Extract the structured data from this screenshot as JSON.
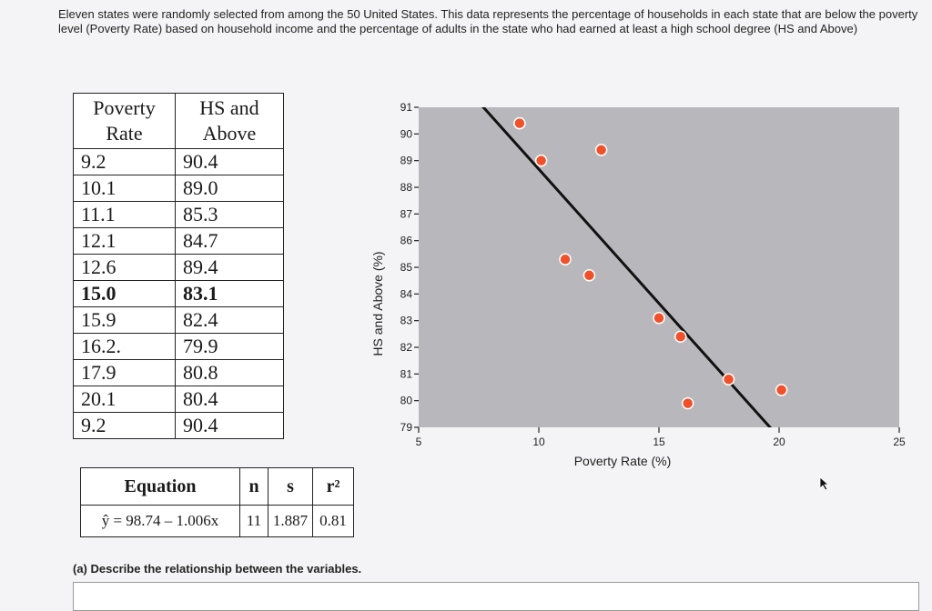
{
  "intro_text": "Eleven states were randomly selected from among the 50 United States. This data represents the percentage of households in each state that are below the poverty level (Poverty Rate) based on household income and the percentage of adults in the state who had earned at least a high school degree (HS and Above)",
  "data_table": {
    "headers": [
      [
        "Poverty",
        "Rate"
      ],
      [
        "HS and",
        "Above"
      ]
    ],
    "rows": [
      [
        "9.2",
        "90.4"
      ],
      [
        "10.1",
        "89.0"
      ],
      [
        "11.1",
        "85.3"
      ],
      [
        "12.1",
        "84.7"
      ],
      [
        "12.6",
        "89.4"
      ],
      [
        "15.0",
        "83.1"
      ],
      [
        "15.9",
        "82.4"
      ],
      [
        "16.2.",
        "79.9"
      ],
      [
        "17.9",
        "80.8"
      ],
      [
        "20.1",
        "80.4"
      ],
      [
        "9.2",
        "90.4"
      ]
    ]
  },
  "equation_table": {
    "headers": [
      "Equation",
      "n",
      "s",
      "r²"
    ],
    "values": [
      "ŷ = 98.74 – 1.006x",
      "11",
      "1.887",
      "0.81"
    ]
  },
  "question": "(a) Describe the relationship between the variables.",
  "chart_data": {
    "type": "scatter",
    "xlabel": "Poverty Rate (%)",
    "ylabel": "HS and Above (%)",
    "xlim": [
      5,
      25
    ],
    "ylim": [
      79,
      91
    ],
    "xticks": [
      5,
      10,
      15,
      20,
      25
    ],
    "yticks": [
      79,
      80,
      81,
      82,
      83,
      84,
      85,
      86,
      87,
      88,
      89,
      90,
      91
    ],
    "points": [
      {
        "x": 9.2,
        "y": 90.4
      },
      {
        "x": 10.1,
        "y": 89.0
      },
      {
        "x": 11.1,
        "y": 85.3
      },
      {
        "x": 12.1,
        "y": 84.7
      },
      {
        "x": 12.6,
        "y": 89.4
      },
      {
        "x": 15.0,
        "y": 83.1
      },
      {
        "x": 15.9,
        "y": 82.4
      },
      {
        "x": 16.2,
        "y": 79.9
      },
      {
        "x": 17.9,
        "y": 80.8
      },
      {
        "x": 20.1,
        "y": 80.4
      },
      {
        "x": 9.2,
        "y": 90.4
      }
    ],
    "regression": {
      "intercept": 98.74,
      "slope": -1.006
    },
    "point_color": "#f0502a",
    "plot_background": "#b8b8bc"
  }
}
